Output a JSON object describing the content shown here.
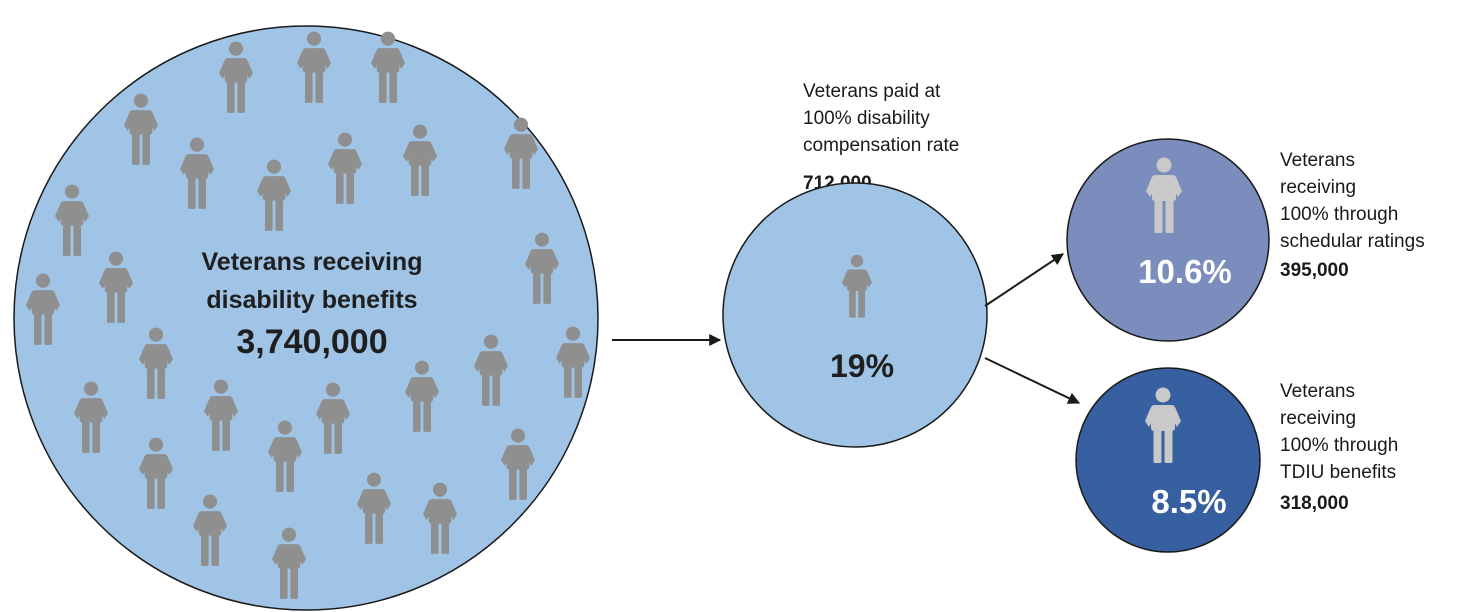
{
  "colors": {
    "main_circle": "#a0c4e6",
    "mid_circle": "#a0c4e6",
    "schedular_circle": "#7b8dbd",
    "tdiu_circle": "#3760a0",
    "person_on_light": "#8f8f8f",
    "person_on_dark": "#c9c9c9",
    "stroke": "#1a1a1a"
  },
  "main": {
    "title_line1": "Veterans receiving",
    "title_line2": "disability benefits",
    "count": "3,740,000",
    "icon": "person-icon"
  },
  "full_rate": {
    "label_line1": "Veterans paid at",
    "label_line2": "100% disability",
    "label_line3": "compensation rate",
    "count": "712,000",
    "percent": "19%"
  },
  "schedular": {
    "label_line1": "Veterans",
    "label_line2": "receiving",
    "label_line3": "100% through",
    "label_line4": "schedular ratings",
    "count": "395,000",
    "percent": "10.6%"
  },
  "tdiu": {
    "label_line1": "Veterans",
    "label_line2": "receiving",
    "label_line3": "100% through",
    "label_line4": "TDIU benefits",
    "count": "318,000",
    "percent": "8.5%"
  }
}
